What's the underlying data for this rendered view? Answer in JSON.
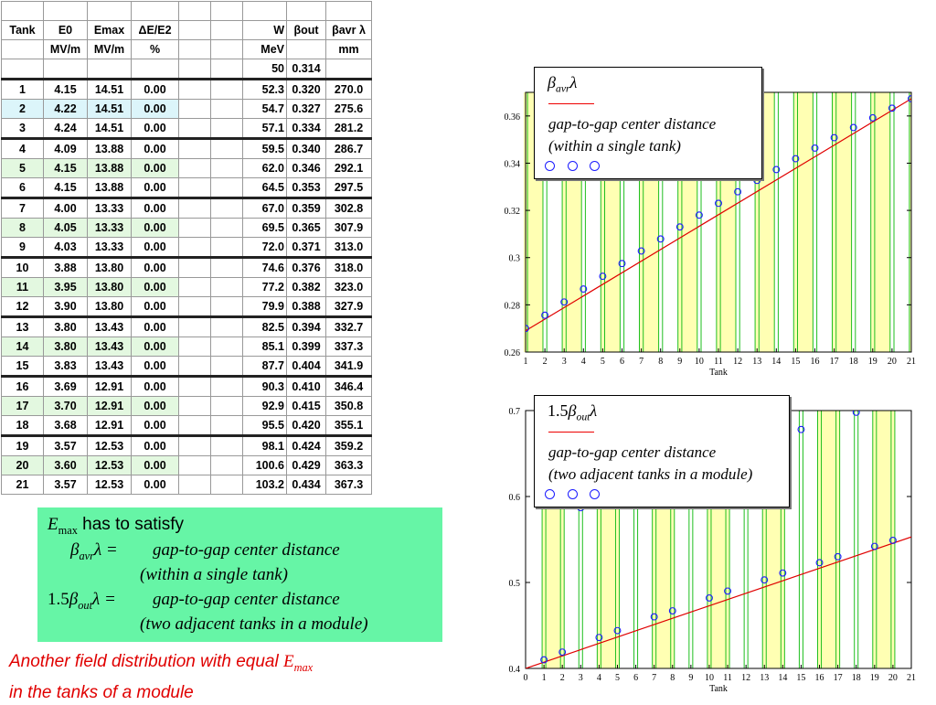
{
  "table": {
    "header1": [
      "Tank",
      "E0",
      "Emax",
      "ΔE/E2",
      "",
      "",
      "W",
      "βout",
      "βavr λ"
    ],
    "header2": [
      "",
      "MV/m",
      "MV/m",
      "%",
      "",
      "",
      "MeV",
      "",
      "mm"
    ],
    "header3": [
      "",
      "",
      "",
      "",
      "",
      "",
      "50",
      "0.314",
      ""
    ],
    "rows": [
      [
        "1",
        "4.15",
        "14.51",
        "0.00",
        "",
        "",
        "52.3",
        "0.320",
        "270.0"
      ],
      [
        "2",
        "4.22",
        "14.51",
        "0.00",
        "",
        "",
        "54.7",
        "0.327",
        "275.6"
      ],
      [
        "3",
        "4.24",
        "14.51",
        "0.00",
        "",
        "",
        "57.1",
        "0.334",
        "281.2"
      ],
      [
        "4",
        "4.09",
        "13.88",
        "0.00",
        "",
        "",
        "59.5",
        "0.340",
        "286.7"
      ],
      [
        "5",
        "4.15",
        "13.88",
        "0.00",
        "",
        "",
        "62.0",
        "0.346",
        "292.1"
      ],
      [
        "6",
        "4.15",
        "13.88",
        "0.00",
        "",
        "",
        "64.5",
        "0.353",
        "297.5"
      ],
      [
        "7",
        "4.00",
        "13.33",
        "0.00",
        "",
        "",
        "67.0",
        "0.359",
        "302.8"
      ],
      [
        "8",
        "4.05",
        "13.33",
        "0.00",
        "",
        "",
        "69.5",
        "0.365",
        "307.9"
      ],
      [
        "9",
        "4.03",
        "13.33",
        "0.00",
        "",
        "",
        "72.0",
        "0.371",
        "313.0"
      ],
      [
        "10",
        "3.88",
        "13.80",
        "0.00",
        "",
        "",
        "74.6",
        "0.376",
        "318.0"
      ],
      [
        "11",
        "3.95",
        "13.80",
        "0.00",
        "",
        "",
        "77.2",
        "0.382",
        "323.0"
      ],
      [
        "12",
        "3.90",
        "13.80",
        "0.00",
        "",
        "",
        "79.9",
        "0.388",
        "327.9"
      ],
      [
        "13",
        "3.80",
        "13.43",
        "0.00",
        "",
        "",
        "82.5",
        "0.394",
        "332.7"
      ],
      [
        "14",
        "3.80",
        "13.43",
        "0.00",
        "",
        "",
        "85.1",
        "0.399",
        "337.3"
      ],
      [
        "15",
        "3.83",
        "13.43",
        "0.00",
        "",
        "",
        "87.7",
        "0.404",
        "341.9"
      ],
      [
        "16",
        "3.69",
        "12.91",
        "0.00",
        "",
        "",
        "90.3",
        "0.410",
        "346.4"
      ],
      [
        "17",
        "3.70",
        "12.91",
        "0.00",
        "",
        "",
        "92.9",
        "0.415",
        "350.8"
      ],
      [
        "18",
        "3.68",
        "12.91",
        "0.00",
        "",
        "",
        "95.5",
        "0.420",
        "355.1"
      ],
      [
        "19",
        "3.57",
        "12.53",
        "0.00",
        "",
        "",
        "98.1",
        "0.424",
        "359.2"
      ],
      [
        "20",
        "3.60",
        "12.53",
        "0.00",
        "",
        "",
        "100.6",
        "0.429",
        "363.3"
      ],
      [
        "21",
        "3.57",
        "12.53",
        "0.00",
        "",
        "",
        "103.2",
        "0.434",
        "367.3"
      ]
    ],
    "highlight_colors": {
      "blue": "#dcf5fa",
      "green": "#e3f8e0"
    }
  },
  "box": {
    "line1_symbol": "E",
    "line1_sub": "max",
    "line1_text": " has to satisfy",
    "line2_beta": "β",
    "line2_sub": "avr",
    "line2_lambda": "λ =",
    "line2_text": "gap-to-gap center distance",
    "line3_text": "(within a single tank)",
    "line4_prefix": "1.5",
    "line4_beta": "β",
    "line4_sub": "out",
    "line4_lambda": "λ =",
    "line4_text": "gap-to-gap center distance",
    "line5_text": "(two adjacent tanks in a module)",
    "background": "#66f5a6"
  },
  "caption": {
    "line1": "Another field distribution with equal ",
    "line1_emph": "E",
    "line1_sub": "max",
    "line2": "in the tanks of a module",
    "color": "#e00000"
  },
  "chart_data": [
    {
      "type": "line",
      "xlabel": "Tank",
      "ylabel": "",
      "xlim": [
        1,
        21
      ],
      "ylim": [
        0.26,
        0.37
      ],
      "x_ticks": [
        1,
        2,
        3,
        4,
        5,
        6,
        7,
        8,
        9,
        10,
        11,
        12,
        13,
        14,
        15,
        16,
        17,
        18,
        19,
        20,
        21
      ],
      "y_ticks": [
        0.26,
        0.28,
        0.3,
        0.32,
        0.34,
        0.36
      ],
      "y_tick_labels": [
        "0.26",
        "0.28",
        "0.3",
        "0.32",
        "0.34",
        "0.36"
      ],
      "band_color": "#ffffb3",
      "divider_color": "#1fbf1f",
      "line_color": "#e00000",
      "marker_color": "#1a1aff",
      "line": {
        "x": [
          0.75,
          21
        ],
        "y": [
          0.2678,
          0.3673
        ]
      },
      "points": {
        "x": [
          1,
          2,
          3,
          4,
          5,
          6,
          7,
          8,
          9,
          10,
          11,
          12,
          13,
          14,
          15,
          16,
          17,
          18,
          19,
          20,
          21
        ],
        "y": [
          0.27,
          0.2756,
          0.2812,
          0.2867,
          0.2921,
          0.2975,
          0.3028,
          0.3079,
          0.313,
          0.318,
          0.323,
          0.3279,
          0.3327,
          0.3373,
          0.3419,
          0.3464,
          0.3508,
          0.3551,
          0.3592,
          0.3633,
          0.3673
        ]
      },
      "legend": {
        "symbol_beta": "β",
        "symbol_sub": "avr",
        "symbol_lambda": "λ",
        "line1": "gap-to-gap center distance",
        "line2": "(within a single tank)"
      }
    },
    {
      "type": "line",
      "xlabel": "Tank",
      "ylabel": "",
      "xlim": [
        0,
        21
      ],
      "ylim": [
        0.4,
        0.7
      ],
      "x_ticks": [
        0,
        1,
        2,
        3,
        4,
        5,
        6,
        7,
        8,
        9,
        10,
        11,
        12,
        13,
        14,
        15,
        16,
        17,
        18,
        19,
        20,
        21
      ],
      "y_ticks": [
        0.4,
        0.5,
        0.6,
        0.7
      ],
      "y_tick_labels": [
        "0.4",
        "0.5",
        "0.6",
        "0.7"
      ],
      "band_color": "#ffffb3",
      "divider_color": "#1fbf1f",
      "line_color": "#e00000",
      "marker_color": "#1a1aff",
      "line": {
        "x": [
          0,
          21
        ],
        "y": [
          0.4,
          0.553
        ]
      },
      "points": {
        "x": [
          1,
          2,
          4,
          5,
          7,
          8,
          10,
          11,
          13,
          14,
          16,
          17,
          19,
          20,
          3,
          15,
          18
        ],
        "y": [
          0.41,
          0.419,
          0.436,
          0.444,
          0.46,
          0.467,
          0.482,
          0.49,
          0.503,
          0.511,
          0.523,
          0.53,
          0.542,
          0.549,
          0.587,
          0.678,
          0.698
        ]
      },
      "legend": {
        "symbol_prefix": "1.5",
        "symbol_beta": "β",
        "symbol_sub": "out",
        "symbol_lambda": "λ",
        "line1": "gap-to-gap center distance",
        "line2": "(two adjacent tanks in a module)"
      }
    }
  ]
}
